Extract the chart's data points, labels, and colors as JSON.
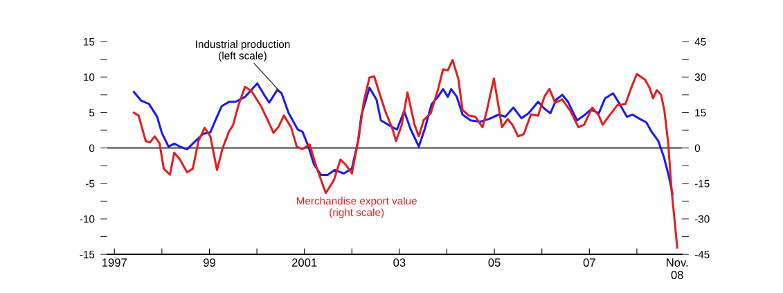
{
  "chart_data": {
    "type": "line",
    "xlim": [
      1996.85,
      2008.95
    ],
    "xticks": [
      1997,
      {
        "value": 1998,
        "label": null
      },
      {
        "value": 1999,
        "label": "99"
      },
      {
        "value": 2000,
        "label": null
      },
      2001,
      {
        "value": 2002,
        "label": null
      },
      {
        "value": 2003,
        "label": "03"
      },
      {
        "value": 2004,
        "label": null
      },
      {
        "value": 2005,
        "label": "05"
      },
      {
        "value": 2006,
        "label": null
      },
      {
        "value": 2007,
        "label": "07"
      },
      {
        "value": 2008,
        "label": null
      },
      {
        "value": 2008.85,
        "label": "Nov.\n08"
      }
    ],
    "ylim": [
      -15,
      15
    ],
    "yticks": [
      -15,
      {
        "value": -12.5,
        "label": null
      },
      -10,
      {
        "value": -7.5,
        "label": null
      },
      -5,
      {
        "value": -2.5,
        "label": null
      },
      0,
      {
        "value": 2.5,
        "label": null
      },
      5,
      {
        "value": 7.5,
        "label": null
      },
      10,
      {
        "value": 12.5,
        "label": null
      },
      15
    ],
    "y2lim": [
      -45,
      45
    ],
    "y2ticks": [
      -45,
      {
        "value": -37.5,
        "label": null
      },
      -30,
      {
        "value": -22.5,
        "label": null
      },
      -15,
      {
        "value": -7.5,
        "label": null
      },
      0,
      {
        "value": 7.5,
        "label": null
      },
      15,
      {
        "value": 22.5,
        "label": null
      },
      30,
      {
        "value": 37.5,
        "label": null
      },
      45
    ],
    "ref_lines": [
      {
        "axis": "y",
        "value": 0,
        "label": null,
        "color": "#222222"
      }
    ],
    "grid": false,
    "legend": false,
    "marker": "none",
    "line_style": "solid",
    "series": [
      {
        "name": "Industrial production\n(left scale)",
        "color": "#1a1aee",
        "x": [
          1997.41,
          1997.56,
          1997.73,
          1997.9,
          1998.0,
          1998.14,
          1998.26,
          1998.38,
          1998.53,
          1998.68,
          1998.87,
          1999.02,
          1999.14,
          1999.26,
          1999.41,
          1999.55,
          1999.75,
          1999.94,
          2000.01,
          2000.18,
          2000.26,
          2000.43,
          2000.52,
          2000.67,
          2000.86,
          2000.96,
          2001.08,
          2001.2,
          2001.35,
          2001.49,
          2001.64,
          2001.83,
          2002.0,
          2002.13,
          2002.2,
          2002.37,
          2002.52,
          2002.61,
          2002.76,
          2002.86,
          2002.95,
          2003.1,
          2003.24,
          2003.41,
          2003.53,
          2003.68,
          2003.82,
          2003.92,
          2004.02,
          2004.09,
          2004.21,
          2004.33,
          2004.5,
          2004.7,
          2004.89,
          2005.09,
          2005.23,
          2005.4,
          2005.57,
          2005.72,
          2005.92,
          2006.06,
          2006.18,
          2006.3,
          2006.43,
          2006.55,
          2006.74,
          2006.89,
          2007.03,
          2007.2,
          2007.33,
          2007.5,
          2007.62,
          2007.79,
          2007.91,
          2008.06,
          2008.2,
          2008.3,
          2008.45,
          2008.57,
          2008.67,
          2008.75
        ],
        "values": [
          7.9,
          6.7,
          6.2,
          4.4,
          2.1,
          0.2,
          0.6,
          0.2,
          -0.2,
          0.8,
          2.0,
          2.2,
          4.1,
          5.9,
          6.5,
          6.5,
          7.2,
          8.6,
          9.1,
          7.2,
          6.4,
          8.2,
          7.7,
          4.9,
          2.6,
          2.3,
          0.3,
          -2.3,
          -3.8,
          -3.8,
          -3.1,
          -3.6,
          -2.9,
          1.0,
          4.6,
          8.5,
          6.8,
          3.9,
          3.3,
          2.9,
          2.6,
          5.2,
          2.6,
          0.2,
          2.6,
          6.2,
          7.3,
          8.3,
          7.2,
          8.3,
          7.2,
          4.7,
          3.9,
          3.7,
          4.1,
          4.7,
          4.4,
          5.7,
          4.2,
          4.9,
          6.5,
          5.5,
          4.9,
          6.8,
          7.5,
          6.5,
          3.9,
          4.6,
          5.4,
          4.9,
          7.0,
          7.7,
          6.4,
          4.4,
          4.7,
          4.1,
          3.6,
          2.4,
          1.0,
          -1.3,
          -3.9,
          -6.5
        ]
      },
      {
        "name": "Merchandise export value\n(right scale)",
        "color": "#e02020",
        "axis": "y2",
        "x": [
          1997.41,
          1997.51,
          1997.66,
          1997.75,
          1997.85,
          1997.95,
          1998.04,
          1998.17,
          1998.26,
          1998.38,
          1998.53,
          1998.65,
          1998.77,
          1998.9,
          1999.02,
          1999.16,
          1999.28,
          1999.41,
          1999.5,
          1999.62,
          1999.75,
          1999.89,
          2000.09,
          2000.23,
          2000.35,
          2000.45,
          2000.57,
          2000.72,
          2000.84,
          2000.96,
          2001.11,
          2001.25,
          2001.45,
          2001.62,
          2001.76,
          2001.88,
          2002.0,
          2002.15,
          2002.25,
          2002.37,
          2002.47,
          2002.56,
          2002.71,
          2002.86,
          2002.93,
          2003.05,
          2003.17,
          2003.32,
          2003.41,
          2003.51,
          2003.66,
          2003.81,
          2003.92,
          2004.02,
          2004.12,
          2004.24,
          2004.33,
          2004.46,
          2004.6,
          2004.75,
          2004.84,
          2004.99,
          2005.16,
          2005.28,
          2005.38,
          2005.5,
          2005.62,
          2005.77,
          2005.92,
          2006.06,
          2006.16,
          2006.28,
          2006.43,
          2006.6,
          2006.77,
          2006.89,
          2007.06,
          2007.2,
          2007.28,
          2007.42,
          2007.59,
          2007.76,
          2007.88,
          2008.0,
          2008.17,
          2008.27,
          2008.34,
          2008.42,
          2008.51,
          2008.58,
          2008.66,
          2008.73,
          2008.85
        ],
        "values": [
          14.9,
          13.7,
          2.9,
          2.4,
          4.9,
          2.0,
          -8.8,
          -11.3,
          -2.0,
          -4.9,
          -10.3,
          -8.8,
          2.9,
          8.6,
          4.9,
          -9.3,
          0,
          6.8,
          9.8,
          18.6,
          25.9,
          24.0,
          17.6,
          11.7,
          6.4,
          8.8,
          13.7,
          8.8,
          0.5,
          -0.5,
          1.5,
          -7.8,
          -19.1,
          -13.7,
          -4.9,
          -7.3,
          -10.8,
          4.9,
          19.6,
          29.8,
          30.3,
          24.5,
          15.2,
          7.8,
          2.9,
          9.8,
          23.5,
          9.8,
          4.9,
          11.7,
          14.7,
          24.5,
          33.3,
          32.8,
          37.2,
          29.4,
          16.1,
          13.7,
          13.2,
          8.8,
          15.7,
          29.4,
          8.8,
          12.2,
          9.8,
          4.9,
          5.9,
          14.2,
          13.7,
          22.0,
          25.0,
          19.1,
          20.5,
          15.7,
          8.8,
          9.8,
          17.1,
          13.7,
          9.8,
          13.7,
          18.1,
          18.6,
          25.4,
          31.3,
          28.9,
          25.4,
          21.0,
          24.5,
          22.5,
          15.7,
          2.0,
          -17.6,
          -42.1
        ]
      }
    ]
  }
}
